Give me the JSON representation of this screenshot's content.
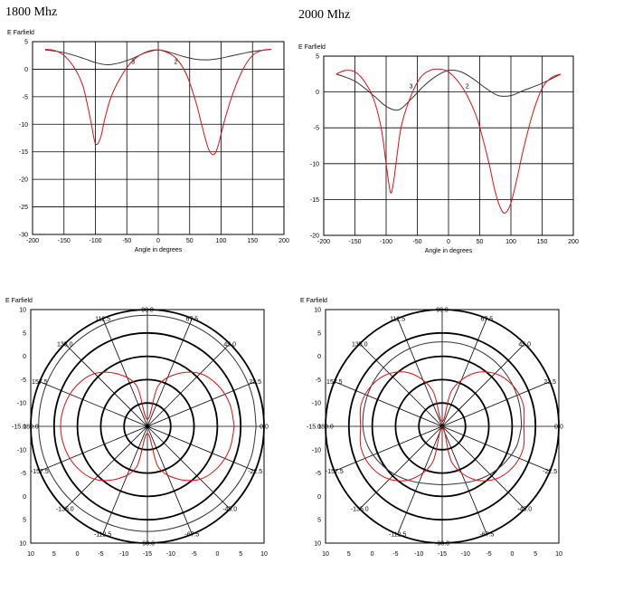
{
  "figure_titles": [
    "1800 Mhz",
    "2000 Mhz"
  ],
  "colors": {
    "series_a": "#333333",
    "series_b": "#e01010",
    "grid": "#000000"
  },
  "chart_data": [
    {
      "type": "line",
      "title": "1800 Mhz",
      "ylabel": "E Farfield",
      "xlabel": "Angle in degrees",
      "xlim": [
        -200,
        200
      ],
      "ylim": [
        -30,
        5
      ],
      "xticks": [
        -200,
        -150,
        -100,
        -50,
        0,
        50,
        100,
        150,
        200
      ],
      "yticks": [
        5,
        0,
        -5,
        -10,
        -15,
        -20,
        -25,
        -30
      ],
      "grid": true,
      "annotations": [
        {
          "text": "3",
          "x": -40,
          "y": 1
        },
        {
          "text": "2",
          "x": 28,
          "y": 1
        }
      ],
      "series": [
        {
          "x": [
            -180,
            -150,
            -120,
            -100,
            -80,
            -60,
            -40,
            -20,
            0,
            20,
            40,
            60,
            80,
            100,
            120,
            150,
            180
          ],
          "values": [
            3.5,
            3.0,
            2.0,
            1.2,
            0.8,
            1.2,
            2.0,
            3.0,
            3.5,
            3.0,
            2.3,
            1.8,
            1.7,
            2.0,
            2.5,
            3.2,
            3.6
          ]
        },
        {
          "x": [
            -180,
            -165,
            -150,
            -135,
            -120,
            -108,
            -100,
            -92,
            -85,
            -75,
            -60,
            -45,
            -30,
            -15,
            0,
            15,
            30,
            45,
            60,
            70,
            80,
            88,
            95,
            105,
            120,
            135,
            150,
            165,
            180
          ],
          "values": [
            3.6,
            3.4,
            2.5,
            0.5,
            -3.0,
            -9.0,
            -13.5,
            -12.5,
            -9.0,
            -5.0,
            -1.5,
            1.0,
            2.5,
            3.3,
            3.5,
            3.0,
            1.8,
            -1.0,
            -6.0,
            -10.5,
            -14.5,
            -15.5,
            -14.0,
            -9.5,
            -4.0,
            0.0,
            2.5,
            3.4,
            3.6
          ]
        }
      ]
    },
    {
      "type": "line",
      "title": "2000 Mhz",
      "ylabel": "E Farfield",
      "xlabel": "Angle in degrees",
      "xlim": [
        -200,
        200
      ],
      "ylim": [
        -20,
        5
      ],
      "xticks": [
        -200,
        -150,
        -100,
        -50,
        0,
        50,
        100,
        150,
        200
      ],
      "yticks": [
        5,
        0,
        -5,
        -10,
        -15,
        -20
      ],
      "grid": true,
      "annotations": [
        {
          "text": "3",
          "x": -60,
          "y": 0.5
        },
        {
          "text": "2",
          "x": 30,
          "y": 0.5
        }
      ],
      "series": [
        {
          "x": [
            -180,
            -150,
            -120,
            -100,
            -80,
            -60,
            -40,
            -20,
            0,
            20,
            40,
            60,
            80,
            100,
            120,
            150,
            180
          ],
          "values": [
            2.5,
            1.5,
            -0.5,
            -2.0,
            -2.5,
            -1.0,
            0.8,
            2.2,
            3.0,
            2.8,
            1.8,
            0.5,
            -0.5,
            -0.5,
            0.2,
            1.2,
            2.5
          ]
        },
        {
          "x": [
            -180,
            -165,
            -150,
            -135,
            -120,
            -108,
            -100,
            -93,
            -88,
            -82,
            -75,
            -60,
            -45,
            -30,
            -15,
            0,
            15,
            30,
            45,
            55,
            65,
            75,
            85,
            92,
            100,
            110,
            120,
            135,
            150,
            165,
            180
          ],
          "values": [
            2.5,
            3.0,
            2.8,
            1.5,
            -1.0,
            -5.0,
            -10.0,
            -14.0,
            -12.5,
            -8.5,
            -4.5,
            -0.5,
            2.0,
            3.0,
            3.2,
            2.8,
            1.5,
            -0.5,
            -3.5,
            -6.5,
            -10.0,
            -14.0,
            -16.5,
            -16.8,
            -15.5,
            -12.0,
            -8.0,
            -3.0,
            0.5,
            2.0,
            2.5
          ]
        }
      ]
    },
    {
      "type": "polar",
      "ylabel": "E Farfield",
      "y_ticks_left": [
        "10",
        "5",
        "0",
        "-5",
        "-10",
        "-15.0",
        "-10",
        "-5",
        "0",
        "5",
        "10"
      ],
      "x_ticks_bottom": [
        "10",
        "5",
        "0",
        "-5",
        "-10",
        "-15",
        "-10",
        "-5",
        "0",
        "5",
        "10"
      ],
      "angle_labels": [
        "90.0",
        "67.5",
        "45.0",
        "22.5",
        "0.0",
        "-22.5",
        "-45.0",
        "-67.5",
        "-90.0",
        "-112.5",
        "-135.0",
        "-157.5",
        "180.0",
        "157.5",
        "135.0",
        "112.5"
      ],
      "ring_levels": [
        -10,
        -5,
        0,
        5,
        10
      ],
      "series": [
        {
          "name": "",
          "angles": [
            0,
            15,
            30,
            45,
            60,
            75,
            90,
            105,
            120,
            135,
            150,
            165,
            180,
            195,
            210,
            225,
            240,
            255,
            270,
            285,
            300,
            315,
            330,
            345,
            360
          ],
          "values": [
            8.3,
            8.4,
            8.5,
            8.6,
            8.7,
            8.8,
            8.8,
            8.8,
            8.7,
            8.6,
            8.5,
            8.4,
            8.3,
            8.2,
            8.0,
            7.8,
            7.6,
            7.5,
            7.5,
            7.5,
            7.6,
            7.8,
            8.0,
            8.2,
            8.3
          ]
        },
        {
          "name": "",
          "angles": [
            0,
            15,
            30,
            45,
            60,
            75,
            90,
            105,
            120,
            135,
            150,
            165,
            180,
            195,
            210,
            225,
            240,
            255,
            270,
            285,
            300,
            315,
            330,
            345,
            360
          ],
          "values": [
            3.6,
            3.3,
            2.5,
            1.0,
            -2.0,
            -6.0,
            -13.5,
            -6.0,
            -2.0,
            1.0,
            2.5,
            3.3,
            3.6,
            3.3,
            2.5,
            1.0,
            -2.0,
            -6.0,
            -13.5,
            -6.0,
            -2.0,
            1.0,
            2.5,
            3.3,
            3.6
          ]
        }
      ]
    },
    {
      "type": "polar",
      "ylabel": "E Farfield",
      "y_ticks_left": [
        "10",
        "5",
        "0",
        "-5",
        "-10",
        "-15.0",
        "-10",
        "-5",
        "0",
        "5",
        "10"
      ],
      "x_ticks_bottom": [
        "10",
        "5",
        "0",
        "-5",
        "-10",
        "-15",
        "-10",
        "-5",
        "0",
        "5",
        "10"
      ],
      "angle_labels": [
        "90.0",
        "67.5",
        "45.0",
        "22.5",
        "0.0",
        "-22.5",
        "-45.0",
        "-67.5",
        "-90.0",
        "-112.5",
        "-135.0",
        "-157.5",
        "180.0",
        "157.5",
        "135.0",
        "112.5"
      ],
      "ring_levels": [
        -10,
        -5,
        0,
        5,
        10
      ],
      "series": [
        {
          "name": "",
          "angles": [
            0,
            15,
            30,
            45,
            60,
            75,
            90,
            105,
            120,
            135,
            150,
            165,
            180,
            195,
            210,
            225,
            240,
            255,
            270,
            285,
            300,
            315,
            330,
            345,
            360
          ],
          "values": [
            2.0,
            2.2,
            2.5,
            2.8,
            3.0,
            3.1,
            3.1,
            3.1,
            3.0,
            2.8,
            2.5,
            2.2,
            2.0,
            1.5,
            0.5,
            -0.5,
            -1.5,
            -2.3,
            -2.5,
            -2.3,
            -1.5,
            -0.5,
            0.5,
            1.5,
            2.0
          ]
        },
        {
          "name": "",
          "angles": [
            0,
            15,
            30,
            45,
            60,
            75,
            90,
            105,
            120,
            135,
            150,
            165,
            180,
            195,
            210,
            225,
            240,
            255,
            270,
            285,
            300,
            315,
            330,
            345,
            360
          ],
          "values": [
            2.5,
            3.0,
            2.5,
            1.0,
            -2.0,
            -7.0,
            -14.0,
            -7.0,
            -2.0,
            1.0,
            2.5,
            3.0,
            2.5,
            3.0,
            2.5,
            1.0,
            -2.0,
            -7.0,
            -16.5,
            -7.0,
            -2.0,
            1.0,
            2.5,
            3.0,
            2.5
          ]
        }
      ]
    }
  ]
}
